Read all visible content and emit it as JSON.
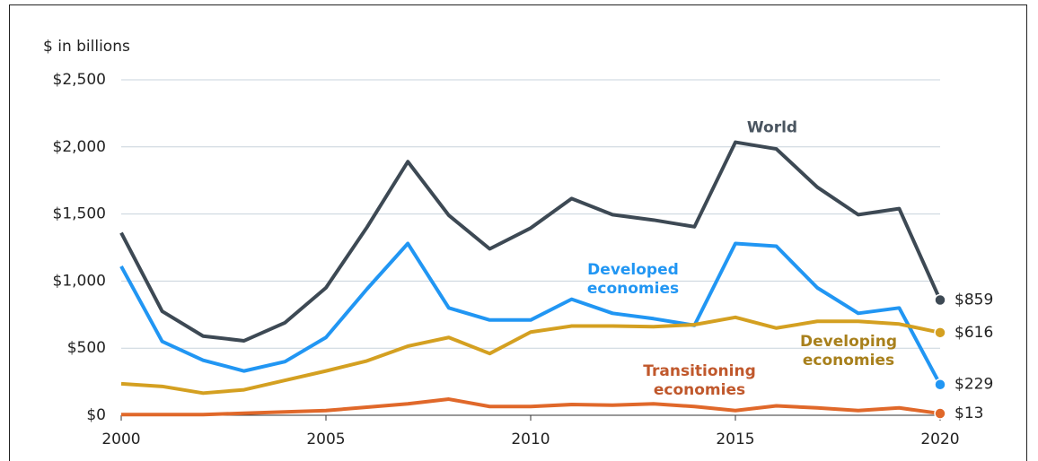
{
  "chart_data": {
    "type": "line",
    "y_axis_label": "$ in billions",
    "x": [
      2000,
      2001,
      2002,
      2003,
      2004,
      2005,
      2006,
      2007,
      2008,
      2009,
      2010,
      2011,
      2012,
      2013,
      2014,
      2015,
      2016,
      2017,
      2018,
      2019,
      2020
    ],
    "xlim": [
      2000,
      2020
    ],
    "xticks": [
      2000,
      2005,
      2010,
      2015,
      2020
    ],
    "ylim": [
      0,
      2500
    ],
    "yticks": [
      {
        "value": 0,
        "label": "$0"
      },
      {
        "value": 500,
        "label": "$500"
      },
      {
        "value": 1000,
        "label": "$1,000"
      },
      {
        "value": 1500,
        "label": "$1,500"
      },
      {
        "value": 2000,
        "label": "$2,000"
      },
      {
        "value": 2500,
        "label": "$2,500"
      }
    ],
    "grid": true,
    "series": [
      {
        "name": "World",
        "color": "#3d4954",
        "label_color": "#4a5560",
        "values": [
          1360,
          775,
          590,
          555,
          690,
          950,
          1400,
          1890,
          1490,
          1240,
          1395,
          1615,
          1495,
          1455,
          1405,
          2035,
          1985,
          1700,
          1495,
          1540,
          859
        ],
        "value_labels": [
          null,
          null,
          null,
          null,
          null,
          null,
          null,
          null,
          null,
          null,
          null,
          null,
          null,
          null,
          null,
          null,
          null,
          null,
          null,
          null,
          "$859"
        ]
      },
      {
        "name": "Developed economies",
        "color": "#2196f3",
        "label_color": "#2196f3",
        "values": [
          1110,
          550,
          410,
          330,
          400,
          580,
          940,
          1280,
          800,
          710,
          710,
          865,
          760,
          720,
          670,
          1280,
          1260,
          950,
          760,
          800,
          229
        ],
        "value_labels": [
          null,
          null,
          null,
          null,
          null,
          null,
          null,
          null,
          null,
          null,
          null,
          null,
          null,
          null,
          null,
          null,
          null,
          null,
          null,
          null,
          "$229"
        ]
      },
      {
        "name": "Developing economies",
        "color": "#d4a021",
        "label_color": "#a8801c",
        "values": [
          235,
          215,
          165,
          190,
          260,
          330,
          405,
          515,
          580,
          460,
          620,
          665,
          665,
          660,
          675,
          730,
          650,
          700,
          700,
          680,
          616
        ],
        "value_labels": [
          null,
          null,
          null,
          null,
          null,
          null,
          null,
          null,
          null,
          null,
          null,
          null,
          null,
          null,
          null,
          null,
          null,
          null,
          null,
          null,
          "$616"
        ]
      },
      {
        "name": "Transitioning economies",
        "color": "#e0682a",
        "label_color": "#c0582c",
        "values": [
          5,
          5,
          5,
          15,
          25,
          35,
          60,
          85,
          120,
          65,
          65,
          80,
          75,
          85,
          65,
          35,
          70,
          55,
          35,
          55,
          13
        ],
        "value_labels": [
          null,
          null,
          null,
          null,
          null,
          null,
          null,
          null,
          null,
          null,
          null,
          null,
          null,
          null,
          null,
          null,
          null,
          null,
          null,
          null,
          "$13"
        ]
      }
    ]
  }
}
